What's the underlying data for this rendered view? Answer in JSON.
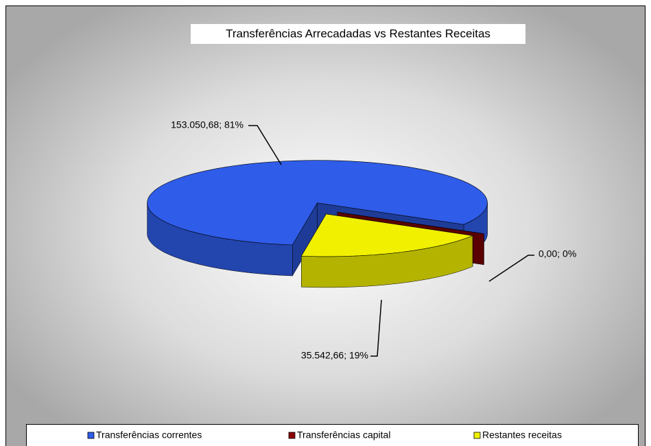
{
  "chart_data": {
    "type": "pie",
    "title": "Transferências Arrecadadas vs Restantes Receitas",
    "categories": [
      "Transferências correntes",
      "Transferências capital",
      "Restantes receitas"
    ],
    "values": [
      153050.68,
      0,
      35542.66
    ],
    "value_labels": [
      "153.050,68; 81%",
      "0,00; 0%",
      "35.542,66; 19%"
    ],
    "colors": [
      "#2f5ce8",
      "#8b0000",
      "#f0f000"
    ],
    "legend": "bottom"
  }
}
